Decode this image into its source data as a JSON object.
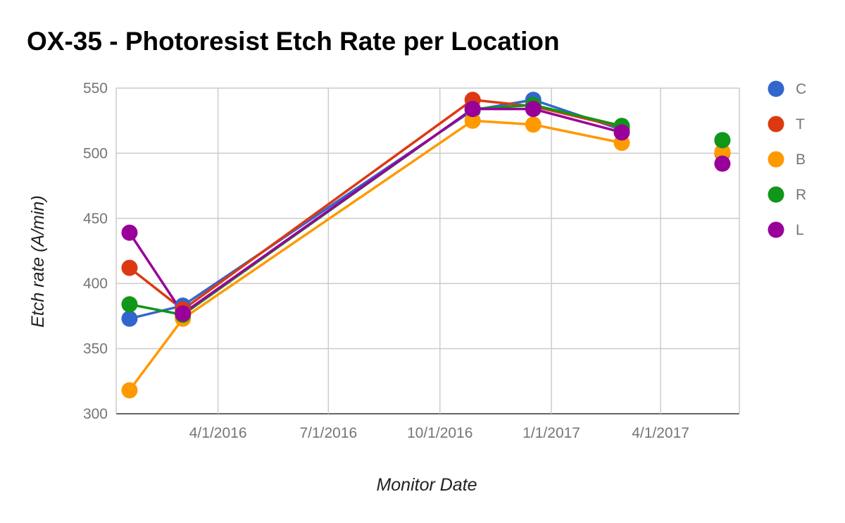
{
  "chart_data": {
    "type": "line",
    "title": "OX-35 - Photoresist Etch Rate per Location",
    "xlabel": "Monitor Date",
    "ylabel": "Etch rate (A/min)",
    "ylim": [
      300,
      550
    ],
    "yticks": [
      300,
      350,
      400,
      450,
      500,
      550
    ],
    "xticks": [
      "2016-04-01",
      "2016-07-01",
      "2016-10-01",
      "2017-01-01",
      "2017-04-01"
    ],
    "xtick_labels": [
      "4/1/2016",
      "7/1/2016",
      "10/1/2016",
      "1/1/2017",
      "4/1/2017"
    ],
    "xlim": [
      "2016-01-08",
      "2017-06-05"
    ],
    "grid": true,
    "legend_position": "right",
    "x": [
      "2016-01-19",
      "2016-03-03",
      "2016-10-28",
      "2016-12-17",
      "2017-02-28",
      "2017-05-22"
    ],
    "series": [
      {
        "name": "C",
        "color": "#3366cc",
        "values": [
          373,
          383,
          533,
          541,
          518,
          510
        ]
      },
      {
        "name": "T",
        "color": "#dc3912",
        "values": [
          412,
          380,
          541,
          536,
          520,
          500
        ]
      },
      {
        "name": "B",
        "color": "#ff9900",
        "values": [
          318,
          373,
          525,
          522,
          508,
          501
        ]
      },
      {
        "name": "R",
        "color": "#109618",
        "values": [
          384,
          376,
          534,
          537,
          521,
          510
        ]
      },
      {
        "name": "L",
        "color": "#990099",
        "values": [
          439,
          377,
          534,
          534,
          516,
          492
        ]
      }
    ],
    "line_break_before_index": 5
  }
}
